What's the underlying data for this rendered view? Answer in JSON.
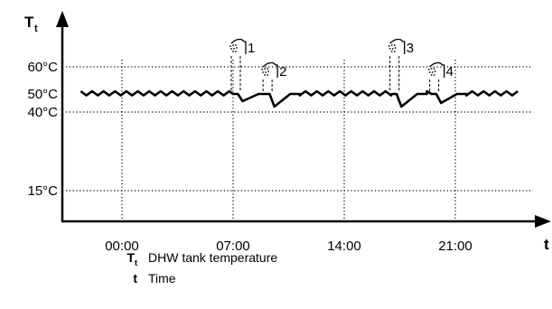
{
  "diagram": {
    "y_axis_symbol": "T",
    "y_axis_subscript": "t",
    "x_axis_symbol": "t",
    "y_levels": [
      {
        "label": "60°C",
        "value": 60,
        "gridline": true
      },
      {
        "label": "50°C",
        "value": 50,
        "gridline": false
      },
      {
        "label": "40°C",
        "value": 40,
        "gridline": true
      },
      {
        "label": "15°C",
        "value": 15,
        "gridline": true
      }
    ],
    "x_ticks": [
      "00:00",
      "07:00",
      "14:00",
      "21:00"
    ],
    "tap_events": [
      {
        "number": "1",
        "time": "07:00"
      },
      {
        "number": "2",
        "time": "09:00"
      },
      {
        "number": "3",
        "time": "17:00"
      },
      {
        "number": "4",
        "time": "19:30"
      }
    ],
    "temperature_profile": {
      "nominal": 50,
      "hysteresis": "sawtooth around 50°C",
      "dips": [
        {
          "event": "1",
          "min": 46
        },
        {
          "event": "2",
          "min": 43
        },
        {
          "event": "3",
          "min": 43
        },
        {
          "event": "4",
          "min": 45
        }
      ]
    },
    "colors": {
      "line": "#000000",
      "grid": "#000000",
      "background": "#ffffff"
    }
  },
  "legend": [
    {
      "symbol": "T",
      "subscript": "t",
      "label": "DHW tank temperature"
    },
    {
      "symbol": "t",
      "subscript": "",
      "label": "Time"
    }
  ]
}
